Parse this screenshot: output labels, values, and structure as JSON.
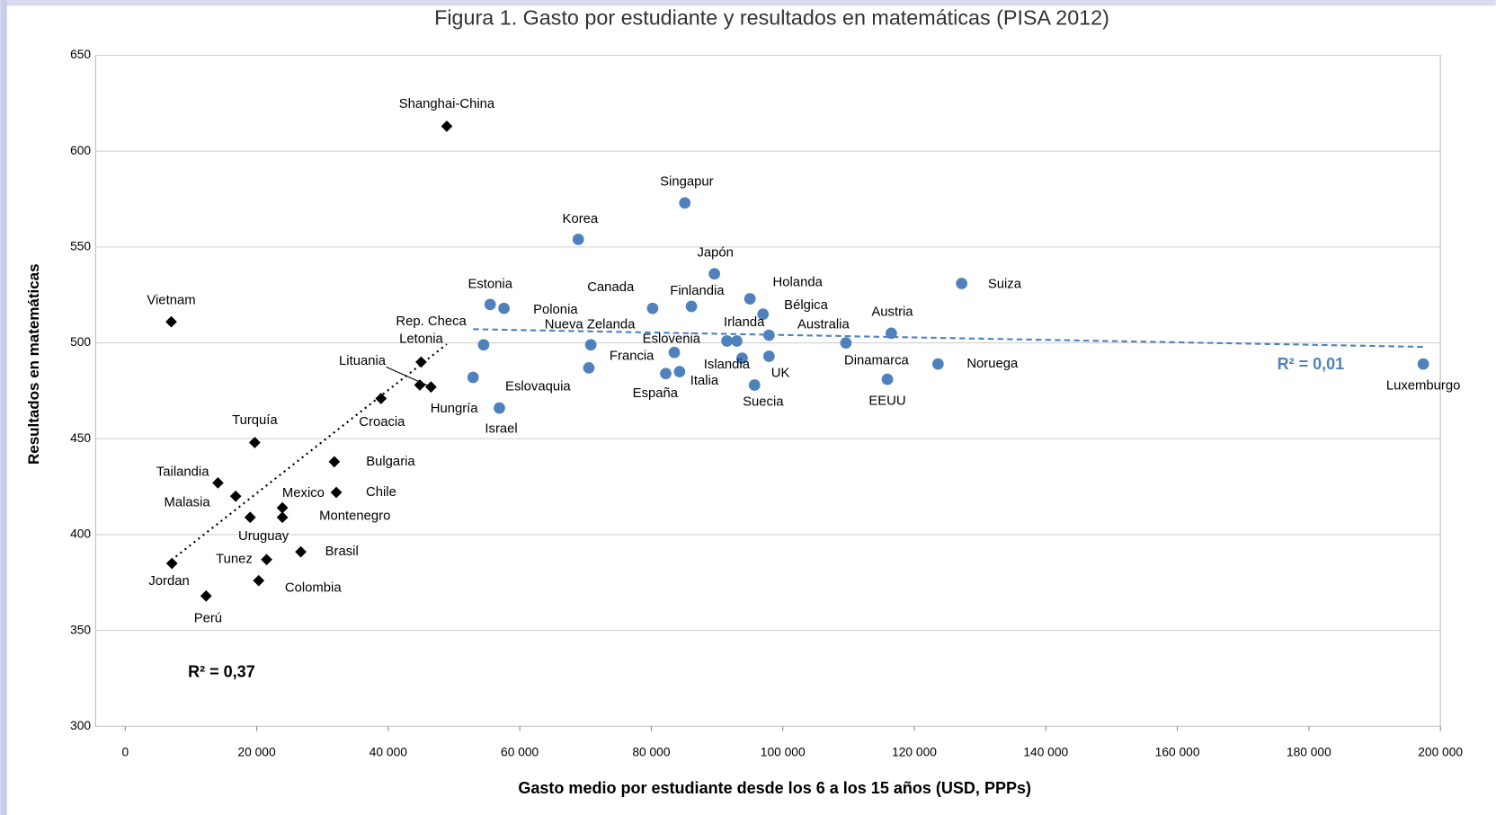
{
  "chart_data": {
    "type": "scatter",
    "title": "Figura 1. Gasto por estudiante y resultados en matemáticas (PISA 2012)",
    "x_label": "Gasto medio por estudiante desde los 6 a los 15 años (USD, PPPs)",
    "y_label": "Resultados en matemáticas",
    "xlim": [
      0,
      200000
    ],
    "xticks": [
      0,
      {
        "value": 20000,
        "label": "20 000"
      },
      {
        "value": 40000,
        "label": "40 000"
      },
      {
        "value": 60000,
        "label": "60 000"
      },
      {
        "value": 80000,
        "label": "80 000"
      },
      {
        "value": 100000,
        "label": "100 000"
      },
      {
        "value": 120000,
        "label": "120 000"
      },
      {
        "value": 140000,
        "label": "140 000"
      },
      {
        "value": 160000,
        "label": "160 000"
      },
      {
        "value": 180000,
        "label": "180 000"
      },
      {
        "value": 200000,
        "label": "200 000"
      }
    ],
    "ylim": [
      300,
      650
    ],
    "yticks": [
      300,
      350,
      400,
      450,
      500,
      550,
      600,
      650
    ],
    "grid": true,
    "highlight": {
      "label": "España",
      "color": "#e8141c"
    },
    "series": [
      {
        "marker": "diamond",
        "color": "#000000",
        "trendline": "dotted",
        "labels": [
          "Shanghai-China",
          "Vietnam",
          "Letonia",
          "Lituania",
          "Hungría",
          "Croacia",
          "Turquía",
          "Bulgaria",
          "Tailandia",
          "Malasia",
          "Mexico",
          "Montenegro",
          "Chile",
          "Uruguay",
          "Brasil",
          "Tunez",
          "Jordan",
          "Colombia",
          "Perú"
        ],
        "x": [
          48900,
          7000,
          45000,
          46500,
          44800,
          38900,
          19700,
          31800,
          14100,
          16800,
          23900,
          23900,
          32100,
          19000,
          26700,
          21500,
          7100,
          20300,
          12300
        ],
        "values": [
          613,
          511,
          490,
          477,
          478,
          471,
          448,
          438,
          427,
          420,
          414,
          409,
          422,
          409,
          391,
          387,
          385,
          376,
          368
        ],
        "r2_label": "R² = 0,37"
      },
      {
        "marker": "circle",
        "color": "#4f81bd",
        "trendline": "dashed",
        "labels": [
          "Singapur",
          "Korea",
          "Japón",
          "Suiza",
          "Holanda",
          "Estonia",
          "Polonia",
          "Canada",
          "Finlandia",
          "Bélgica",
          "Austria",
          "Australia",
          "Irlanda",
          null,
          "Nueva Zelanda",
          "Rep. Checa",
          "Dinamarca",
          "Eslovenia",
          "UK",
          "Islandia",
          "Luxemburgo",
          "Noruega",
          "Francia",
          "Italia",
          "España",
          "Eslovaquia",
          "EEUU",
          "Suecia",
          "Israel"
        ],
        "x": [
          85100,
          68900,
          89600,
          127200,
          95000,
          55500,
          57600,
          80200,
          86100,
          97000,
          116500,
          97900,
          91500,
          93000,
          70800,
          54500,
          109600,
          83500,
          97900,
          93800,
          197400,
          123600,
          70500,
          84300,
          82200,
          52900,
          115900,
          95700,
          56900
        ],
        "values": [
          573,
          554,
          536,
          531,
          523,
          520,
          518,
          518,
          519,
          515,
          505,
          504,
          501,
          501,
          499,
          499,
          500,
          495,
          493,
          492,
          489,
          489,
          487,
          485,
          484,
          482,
          481,
          478,
          466
        ],
        "r2_label": "R² = 0,01"
      }
    ]
  }
}
